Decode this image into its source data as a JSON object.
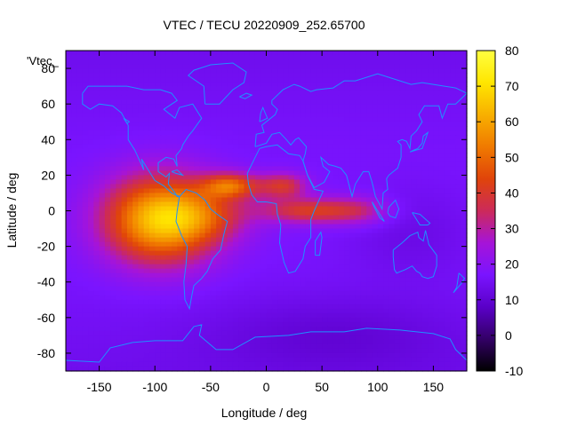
{
  "chart_data": {
    "type": "heatmap",
    "title": "VTEC / TECU 20220909_252.65700",
    "xlabel": "Longitude / deg",
    "ylabel": "Latitude / deg",
    "series_label": "'Vtec_",
    "xlim": [
      -180,
      180
    ],
    "ylim": [
      -90,
      90
    ],
    "x_ticks": [
      -150,
      -100,
      -50,
      0,
      50,
      100,
      150
    ],
    "y_ticks": [
      -80,
      -60,
      -40,
      -20,
      0,
      20,
      40,
      60,
      80
    ],
    "colorbar": {
      "min": -10,
      "max": 80,
      "ticks": [
        -10,
        0,
        10,
        20,
        30,
        40,
        50,
        60,
        70,
        80
      ],
      "palette": [
        "#000000",
        "#330066",
        "#5a00c8",
        "#7a14ff",
        "#a614d8",
        "#cc2a5a",
        "#e0440a",
        "#f07a00",
        "#f8b000",
        "#ffe600",
        "#ffff40"
      ]
    },
    "background_vtec": 14,
    "features": [
      {
        "name": "american-anomaly",
        "lon": -95,
        "lat": -5,
        "peak": 48,
        "sigma_lon": 35,
        "sigma_lat": 17
      },
      {
        "name": "equatorial-peak",
        "lon": -32,
        "lat": 14,
        "peak": 30,
        "sigma_lon": 18,
        "sigma_lat": 5
      },
      {
        "name": "south-american-peak",
        "lon": -55,
        "lat": -3,
        "peak": 14,
        "sigma_lon": 28,
        "sigma_lat": 10
      },
      {
        "name": "african-band",
        "lon": 40,
        "lat": 0,
        "peak": 24,
        "sigma_lon": 32,
        "sigma_lat": 5
      },
      {
        "name": "north-african-lobe",
        "lon": 15,
        "lat": 14,
        "peak": 22,
        "sigma_lon": 15,
        "sigma_lat": 5
      },
      {
        "name": "indian-tail",
        "lon": 85,
        "lat": 0,
        "peak": 10,
        "sigma_lon": 20,
        "sigma_lat": 6
      },
      {
        "name": "pacific-low",
        "lon": 130,
        "lat": -12,
        "peak": -4,
        "sigma_lon": 40,
        "sigma_lat": 18
      },
      {
        "name": "antarctic-low",
        "lon": 60,
        "lat": -70,
        "peak": -5,
        "sigma_lon": 80,
        "sigma_lat": 15
      }
    ],
    "grid_resolution_deg": [
      5,
      2.5
    ],
    "coastline_color": "#1e90ff"
  }
}
